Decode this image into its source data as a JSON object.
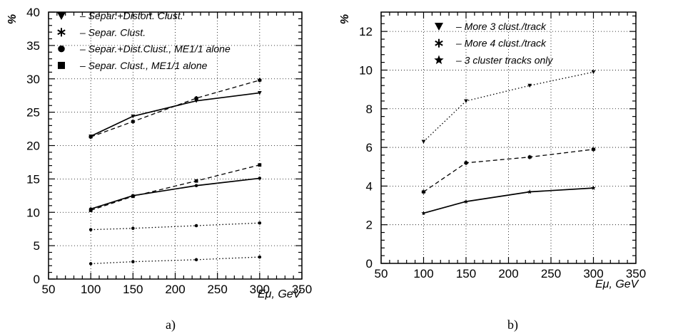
{
  "chart_data": [
    {
      "type": "line",
      "panel_label": "a)",
      "xlabel": "Eμ, GeV",
      "ylabel": "%",
      "xlim": [
        50,
        350
      ],
      "ylim": [
        0,
        40
      ],
      "xticks": [
        50,
        100,
        150,
        200,
        250,
        300,
        350
      ],
      "yticks": [
        0,
        5,
        10,
        15,
        20,
        25,
        30,
        35,
        40
      ],
      "grid": true,
      "legend_position": "top-left",
      "legend": [
        {
          "symbol": "triangle-down",
          "label": "Separ.+Distort. Clust."
        },
        {
          "symbol": "asterisk",
          "label": "Separ. Clust."
        },
        {
          "symbol": "circle",
          "label": "Separ.+Dist.Clust., ME1/1 alone"
        },
        {
          "symbol": "square",
          "label": "Separ. Clust., ME1/1 alone"
        }
      ],
      "series": [
        {
          "style": "solid",
          "marker": "triangle-down",
          "x": [
            100,
            150,
            225,
            300
          ],
          "y": [
            21.4,
            24.4,
            26.7,
            27.9
          ]
        },
        {
          "style": "dashed",
          "marker": "asterisk",
          "x": [
            100,
            150,
            225,
            300
          ],
          "y": [
            21.3,
            23.6,
            27.1,
            29.8
          ]
        },
        {
          "style": "solid",
          "marker": "circle",
          "x": [
            100,
            150,
            225,
            300
          ],
          "y": [
            10.5,
            12.5,
            14.0,
            15.1
          ]
        },
        {
          "style": "dashed",
          "marker": "square",
          "x": [
            100,
            150,
            225,
            300
          ],
          "y": [
            10.3,
            12.4,
            14.7,
            17.1
          ]
        },
        {
          "style": "dotted",
          "marker": "circle",
          "x": [
            100,
            150,
            225,
            300
          ],
          "y": [
            7.4,
            7.6,
            8.0,
            8.4
          ]
        },
        {
          "style": "dotted",
          "marker": "circle",
          "x": [
            100,
            150,
            225,
            300
          ],
          "y": [
            2.3,
            2.6,
            2.9,
            3.3
          ]
        }
      ]
    },
    {
      "type": "line",
      "panel_label": "b)",
      "xlabel": "Eμ, GeV",
      "ylabel": "%",
      "xlim": [
        50,
        350
      ],
      "ylim": [
        0,
        13
      ],
      "xticks": [
        50,
        100,
        150,
        200,
        250,
        300,
        350
      ],
      "yticks": [
        0,
        2,
        4,
        6,
        8,
        10,
        12
      ],
      "grid": true,
      "legend_position": "top-left",
      "legend": [
        {
          "symbol": "triangle-down",
          "label": "More 3 clust./track"
        },
        {
          "symbol": "asterisk",
          "label": "More 4 clust./track"
        },
        {
          "symbol": "star",
          "label": "3 cluster tracks only"
        }
      ],
      "series": [
        {
          "style": "dotted",
          "marker": "triangle-down",
          "x": [
            100,
            150,
            225,
            300
          ],
          "y": [
            6.3,
            8.4,
            9.2,
            9.9
          ]
        },
        {
          "style": "dashed",
          "marker": "asterisk",
          "x": [
            100,
            150,
            225,
            300
          ],
          "y": [
            3.7,
            5.2,
            5.5,
            5.9
          ]
        },
        {
          "style": "solid",
          "marker": "star",
          "x": [
            100,
            150,
            225,
            300
          ],
          "y": [
            2.6,
            3.2,
            3.7,
            3.9
          ]
        }
      ]
    }
  ]
}
